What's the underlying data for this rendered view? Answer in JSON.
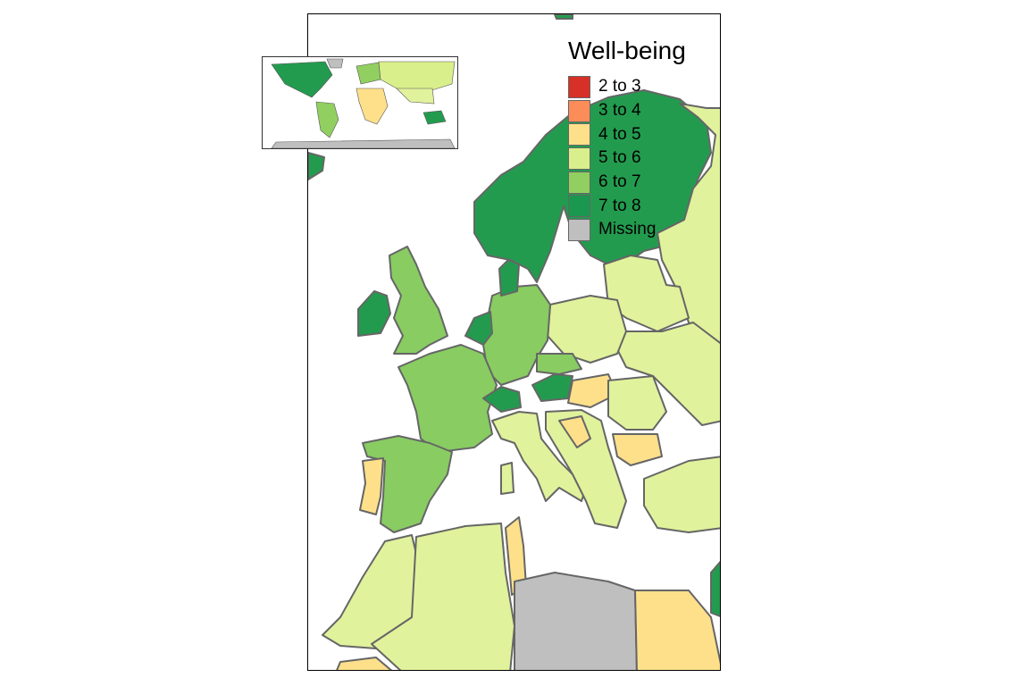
{
  "map": {
    "legend": {
      "title": "Well-being",
      "items": [
        {
          "label": "2 to 3",
          "color": "#d73027"
        },
        {
          "label": "3 to 4",
          "color": "#fc8d59"
        },
        {
          "label": "4 to 5",
          "color": "#fee08b"
        },
        {
          "label": "5 to 6",
          "color": "#d9ef8b"
        },
        {
          "label": "6 to 7",
          "color": "#91cf60"
        },
        {
          "label": "7 to 8",
          "color": "#1a9850"
        },
        {
          "label": "Missing",
          "color": "#bfbfbf"
        }
      ]
    },
    "inset_name": "world-overview-inset",
    "border_color": "#666666"
  }
}
